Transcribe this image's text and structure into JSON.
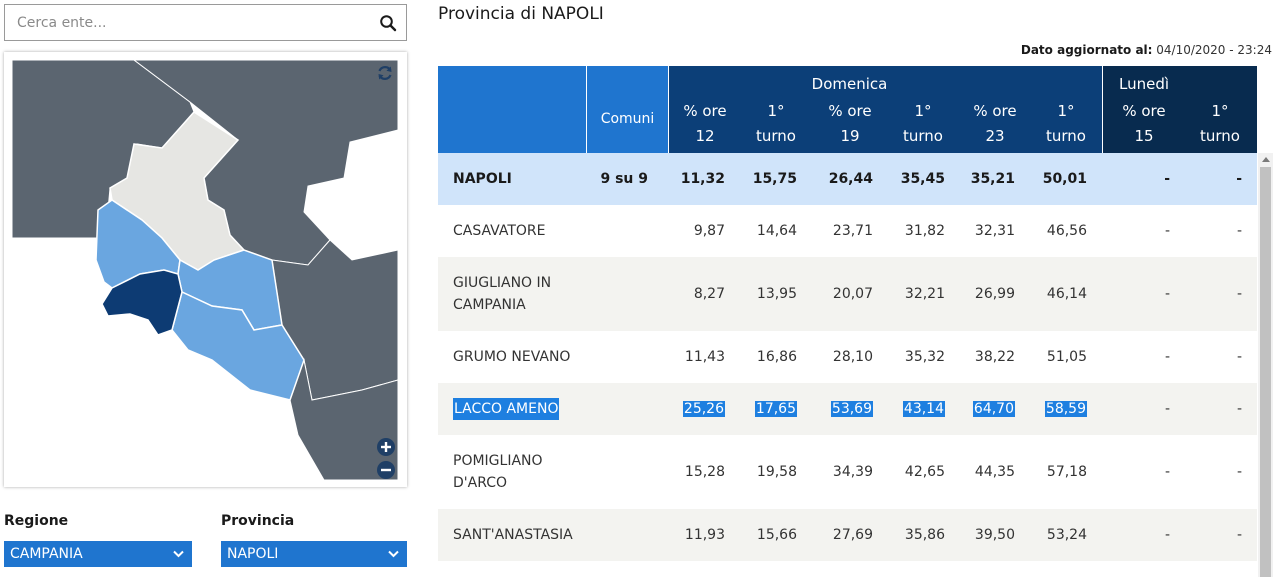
{
  "search": {
    "placeholder": "Cerca ente...",
    "icon": "search-icon"
  },
  "map": {
    "controls": [
      "refresh-icon",
      "zoom-in-icon",
      "zoom-out-icon"
    ],
    "colors": {
      "other_province": "#5b6570",
      "region_other": "#e6e6e3",
      "province": "#6aa6e0",
      "selected": "#0d3b73"
    }
  },
  "filters": {
    "region_label": "Regione",
    "region_value": "CAMPANIA",
    "province_label": "Provincia",
    "province_value": "NAPOLI"
  },
  "page": {
    "title": "Provincia di NAPOLI",
    "updated_label": "Dato aggiornato al:",
    "updated_value": "04/10/2020 - 23:24"
  },
  "table": {
    "comuni_header": "Comuni",
    "domenica_header": "Domenica",
    "lunedi_header": "Lunedì",
    "sub_headers": [
      {
        "line1": "% ore",
        "line2": "12"
      },
      {
        "line1": "1°",
        "line2": "turno"
      },
      {
        "line1": "% ore",
        "line2": "19"
      },
      {
        "line1": "1°",
        "line2": "turno"
      },
      {
        "line1": "% ore",
        "line2": "23"
      },
      {
        "line1": "1°",
        "line2": "turno"
      },
      {
        "line1": "% ore",
        "line2": "15"
      },
      {
        "line1": "1°",
        "line2": "turno"
      }
    ],
    "rows": [
      {
        "name": "NAPOLI",
        "comuni": "9 su 9",
        "values": [
          "11,32",
          "15,75",
          "26,44",
          "35,45",
          "35,21",
          "50,01",
          "-",
          "-"
        ]
      },
      {
        "name": "CASAVATORE",
        "comuni": "",
        "values": [
          "9,87",
          "14,64",
          "23,71",
          "31,82",
          "32,31",
          "46,56",
          "-",
          "-"
        ]
      },
      {
        "name": "GIUGLIANO IN CAMPANIA",
        "comuni": "",
        "values": [
          "8,27",
          "13,95",
          "20,07",
          "32,21",
          "26,99",
          "46,14",
          "-",
          "-"
        ]
      },
      {
        "name": "GRUMO NEVANO",
        "comuni": "",
        "values": [
          "11,43",
          "16,86",
          "28,10",
          "35,32",
          "38,22",
          "51,05",
          "-",
          "-"
        ]
      },
      {
        "name": "LACCO AMENO",
        "comuni": "",
        "values": [
          "25,26",
          "17,65",
          "53,69",
          "43,14",
          "64,70",
          "58,59",
          "-",
          "-"
        ]
      },
      {
        "name": "POMIGLIANO D'ARCO",
        "comuni": "",
        "values": [
          "15,28",
          "19,58",
          "34,39",
          "42,65",
          "44,35",
          "57,18",
          "-",
          "-"
        ]
      },
      {
        "name": "SANT'ANASTASIA",
        "comuni": "",
        "values": [
          "11,93",
          "15,66",
          "27,69",
          "35,86",
          "39,50",
          "53,24",
          "-",
          "-"
        ]
      }
    ]
  }
}
